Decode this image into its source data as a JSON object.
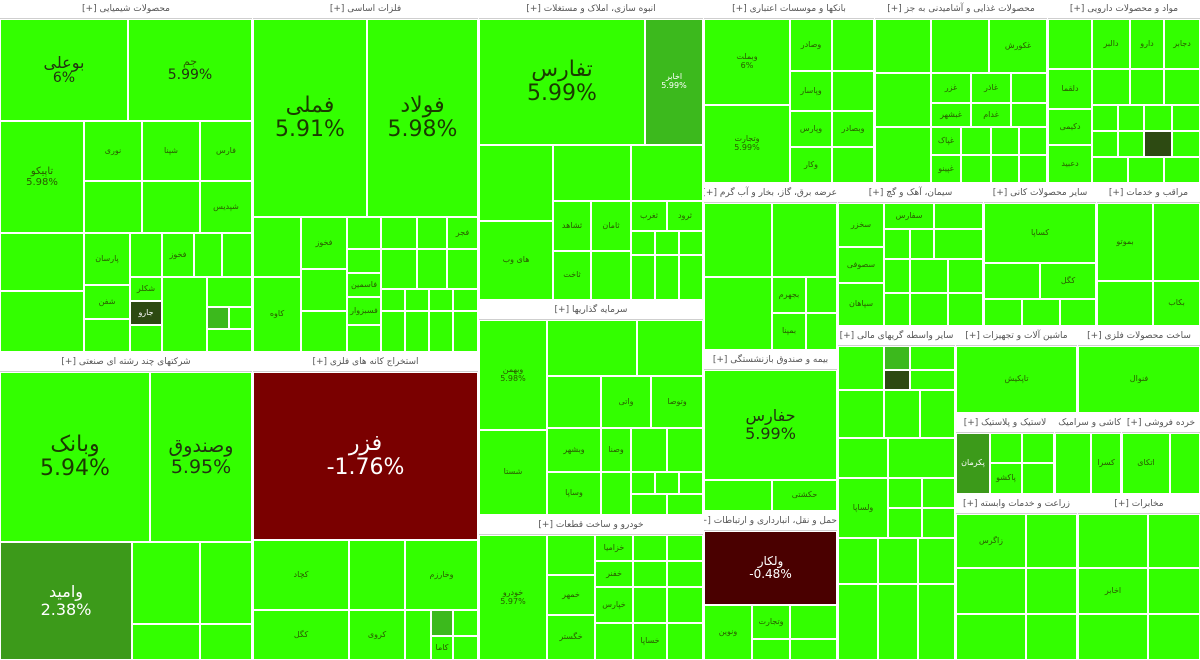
{
  "colors": {
    "up_bright": "#33ff00",
    "up_mid": "#2fe000",
    "up_dim": "#3c9a1a",
    "down_red": "#7a0000",
    "down_dark": "#4a0000"
  },
  "sectors": [
    {
      "title": "محصولات شیمیایی [+]",
      "tiles": [
        {
          "sym": "بوعلی",
          "pct": "6%"
        },
        {
          "sym": "جم",
          "pct": "5.99%"
        },
        {
          "sym": "نوری"
        },
        {
          "sym": "شپنا"
        },
        {
          "sym": "تاپیکو",
          "pct": "5.98%"
        },
        {
          "sym": "فارس"
        },
        {
          "sym": "شپدیس"
        },
        {
          "sym": "خارک"
        },
        {
          "sym": "پارسان"
        },
        {
          "sym": "شفن"
        },
        {
          "sym": "فخوز"
        },
        {
          "sym": "شکلر"
        },
        {
          "sym": "جارو"
        }
      ]
    },
    {
      "title": "فلزات اساسی [+]",
      "tiles": [
        {
          "sym": "فملی",
          "pct": "5.91%"
        },
        {
          "sym": "فولاد",
          "pct": "5.98%"
        },
        {
          "sym": "کاوه"
        },
        {
          "sym": "فخوز"
        },
        {
          "sym": "فجر"
        },
        {
          "sym": "فاسمین"
        },
        {
          "sym": "هرمز"
        },
        {
          "sym": "فسبزوار"
        },
        {
          "sym": "فلوله"
        }
      ]
    },
    {
      "title": "انبوه سازی، املاک و مستغلات [+]",
      "tiles": [
        {
          "sym": "تفارس",
          "pct": "5.99%"
        },
        {
          "sym": "اخابر",
          "pct": "5.99%"
        },
        {
          "sym": "های وب"
        },
        {
          "sym": "مبین"
        },
        {
          "sym": "ثشاهد"
        },
        {
          "sym": "ثغرب"
        },
        {
          "sym": "ثامان"
        },
        {
          "sym": "ثاخت"
        },
        {
          "sym": "ثرود"
        }
      ]
    },
    {
      "title": "بانکها و موسسات اعتباری [+]",
      "tiles": [
        {
          "sym": "وبملت",
          "pct": "6%"
        },
        {
          "sym": "وتجارت",
          "pct": "5.99%"
        },
        {
          "sym": "وصادر"
        },
        {
          "sym": "وپاسار"
        },
        {
          "sym": "وپارس"
        },
        {
          "sym": "وبصادر"
        },
        {
          "sym": "وکار"
        }
      ]
    },
    {
      "title": "محصولات غذایی و آشامیدنی به جز [+]",
      "tiles": [
        {
          "sym": "غکورش"
        },
        {
          "sym": "غاذر"
        },
        {
          "sym": "غزر"
        },
        {
          "sym": "غبشهر"
        },
        {
          "sym": "غدام"
        },
        {
          "sym": "خوشگوار"
        },
        {
          "sym": "غپاک"
        },
        {
          "sym": "غپینو"
        }
      ]
    },
    {
      "title": "مواد و محصولات دارویی [+]",
      "tiles": [
        {
          "sym": "دارو"
        },
        {
          "sym": "دالبر"
        },
        {
          "sym": "دجابر"
        },
        {
          "sym": "دلقما"
        },
        {
          "sym": "دکیمی"
        },
        {
          "sym": "دعبید"
        },
        {
          "sym": "دسبحا"
        },
        {
          "sym": "دفارا"
        },
        {
          "sym": "برکت"
        }
      ]
    },
    {
      "title": "عرضه برق، گاز، بخار و آب گرم [+]",
      "tiles": [
        {
          "sym": "بجهرم"
        },
        {
          "sym": "بمپنا"
        }
      ]
    },
    {
      "title": "سیمان، آهک و گچ [+]",
      "tiles": [
        {
          "sym": "سخزر"
        },
        {
          "sym": "سفارس"
        },
        {
          "sym": "سصوفی"
        },
        {
          "sym": "سپاهان"
        }
      ]
    },
    {
      "title": "سایر محصولات کانی [+]",
      "tiles": [
        {
          "sym": "کساپا"
        },
        {
          "sym": "کگل"
        },
        {
          "sym": "کچاد"
        }
      ]
    },
    {
      "title": "مراقب و خدمات [+]",
      "tiles": [
        {
          "sym": "بموتو"
        },
        {
          "sym": "بکاب"
        }
      ]
    },
    {
      "title": "شرکتهای چند رشته ای صنعتی [+]",
      "tiles": [
        {
          "sym": "وبانک",
          "pct": "5.94%"
        },
        {
          "sym": "وصندوق",
          "pct": "5.95%"
        },
        {
          "sym": "وامید",
          "pct": "2.38%"
        },
        {
          "sym": "وغدیر"
        },
        {
          "sym": "وسپه"
        }
      ]
    },
    {
      "title": "استخراج کانه های فلزی [+]",
      "tiles": [
        {
          "sym": "فزر",
          "pct": "-1.76%"
        },
        {
          "sym": "کچاد"
        },
        {
          "sym": "کگل"
        },
        {
          "sym": "وخارزم"
        },
        {
          "sym": "کروی"
        },
        {
          "sym": "کاما"
        }
      ]
    },
    {
      "title": "سرمایه گذاریها [+]",
      "tiles": [
        {
          "sym": "وبهمن",
          "pct": "5.98%"
        },
        {
          "sym": "وتوصا"
        },
        {
          "sym": "واتی"
        },
        {
          "sym": "وصنا"
        },
        {
          "sym": "وبشهر"
        },
        {
          "sym": "شستا"
        },
        {
          "sym": "وساپا"
        }
      ]
    },
    {
      "title": "خودرو و ساخت قطعات [+]",
      "tiles": [
        {
          "sym": "خودرو",
          "pct": "5.97%"
        },
        {
          "sym": "خساپا"
        },
        {
          "sym": "خمهر"
        },
        {
          "sym": "خپارس"
        },
        {
          "sym": "خگستر"
        },
        {
          "sym": "خفنر"
        },
        {
          "sym": "خزامیا"
        }
      ]
    },
    {
      "title": "بیمه و صندوق بازنشستگی [+]",
      "tiles": [
        {
          "sym": "حفارس",
          "pct": "5.99%"
        },
        {
          "sym": "حکشتی"
        }
      ]
    },
    {
      "title": "حمل و نقل، انبارداری و ارتباطات [+]",
      "tiles": [
        {
          "sym": "ولکار",
          "pct": "-0.48%"
        },
        {
          "sym": "وتجارت"
        },
        {
          "sym": "ونوین"
        }
      ]
    },
    {
      "title": "سایر واسطه گریهای مالی [+]",
      "tiles": [
        {
          "sym": "ولساپا"
        }
      ]
    },
    {
      "title": "ماشین آلات و تجهیزات [+]",
      "tiles": [
        {
          "sym": "تاپکیش"
        },
        {
          "sym": "لابسا"
        }
      ]
    },
    {
      "title": "لاستیک و پلاستیک [+]",
      "tiles": [
        {
          "sym": "پکرمان"
        },
        {
          "sym": "پاکشو"
        }
      ]
    },
    {
      "title": "کاشی و سرامیک [+]",
      "tiles": [
        {
          "sym": "کسرا"
        }
      ]
    },
    {
      "title": "ساخت محصولات فلزی [+]",
      "tiles": [
        {
          "sym": "فنوال"
        },
        {
          "sym": "فسازان"
        }
      ]
    },
    {
      "title": "خرده فروشی [+]",
      "tiles": [
        {
          "sym": "اتکای"
        }
      ]
    },
    {
      "title": "زراعت و خدمات وابسته [+]",
      "tiles": [
        {
          "sym": "زاگرس"
        }
      ]
    },
    {
      "title": "مخابرات [+]",
      "tiles": [
        {
          "sym": "اخابر"
        }
      ]
    }
  ]
}
